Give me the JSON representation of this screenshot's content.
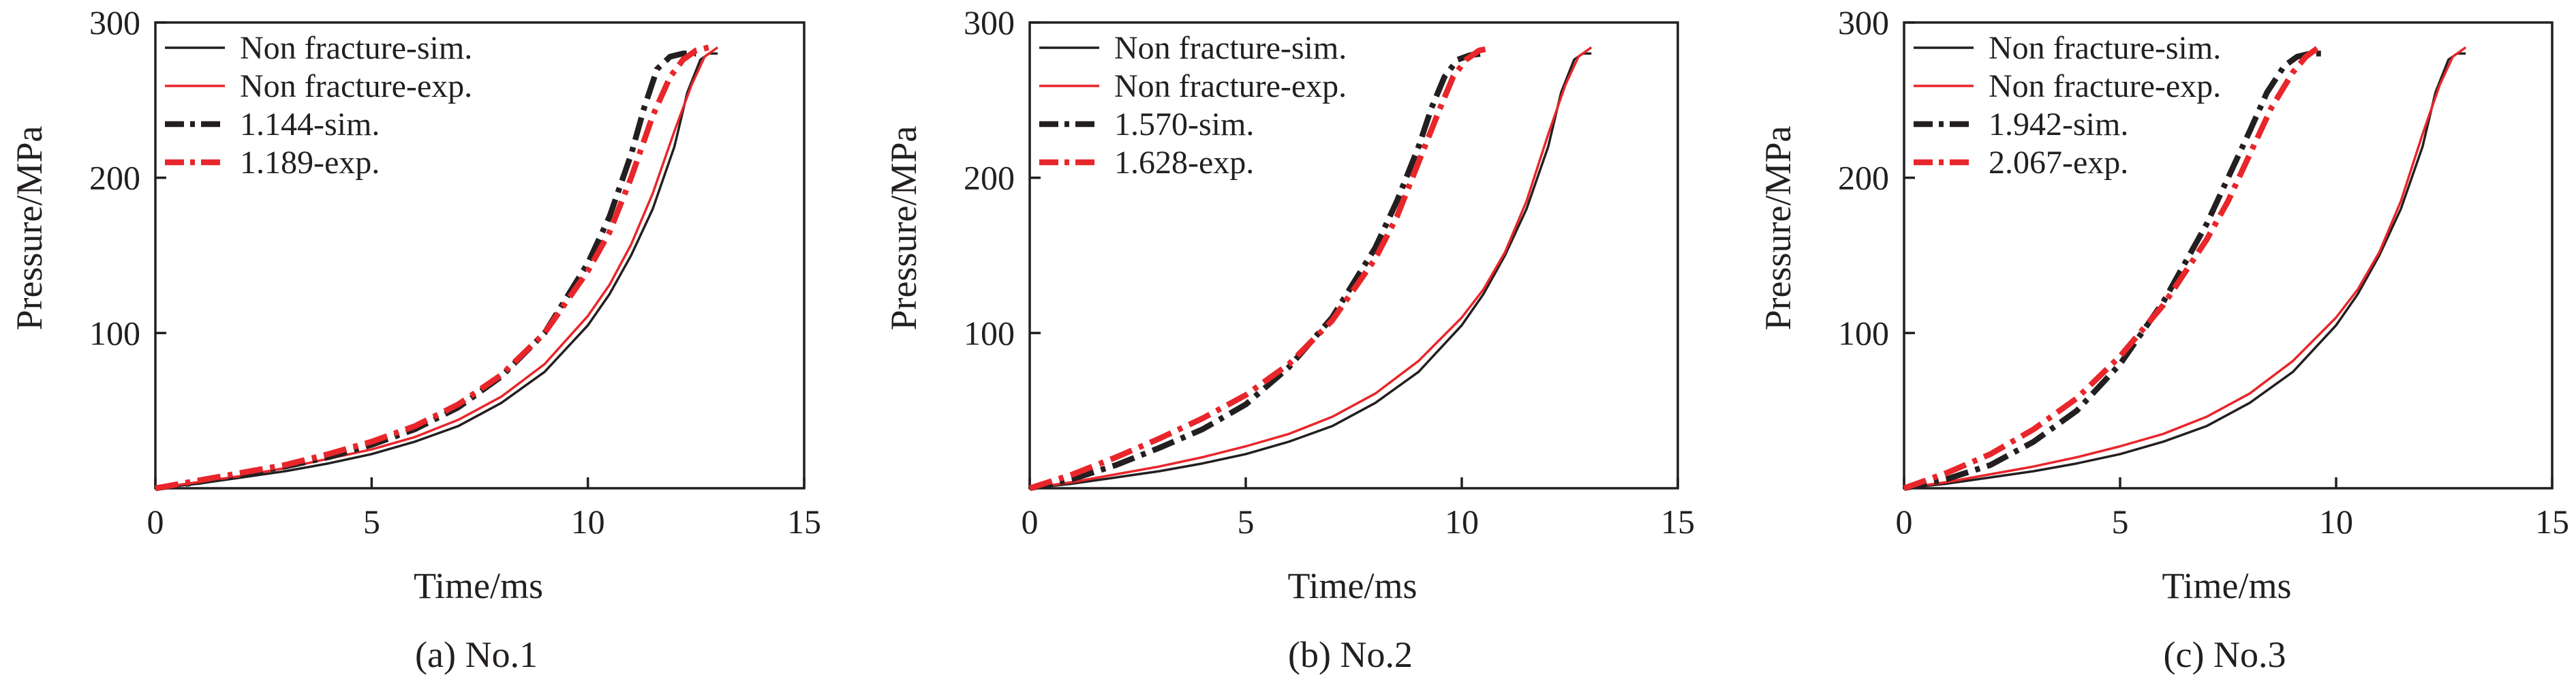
{
  "colors": {
    "black": "#231f20",
    "red": "#e8262b"
  },
  "chart_data": [
    {
      "type": "line",
      "caption": "(a) No.1",
      "xlabel": "Time/ms",
      "ylabel": "Pressure/MPa",
      "xlim": [
        0,
        15
      ],
      "ylim": [
        0,
        300
      ],
      "xticks": [
        "0",
        "5",
        "10",
        "15"
      ],
      "yticks": [
        "100",
        "200",
        "300"
      ],
      "grid": false,
      "legend_position": "top-left",
      "series": [
        {
          "name": "Non fracture-sim.",
          "style": "solid",
          "color": "#231f20",
          "x": [
            0,
            1,
            2,
            3,
            4,
            5,
            6,
            7,
            8,
            9,
            10,
            10.5,
            11,
            11.5,
            12,
            12.3,
            12.6,
            12.8,
            13.0
          ],
          "y": [
            0,
            3,
            7,
            11,
            16,
            22,
            30,
            40,
            55,
            75,
            105,
            125,
            150,
            180,
            220,
            255,
            276,
            280,
            280
          ]
        },
        {
          "name": "Non fracture-exp.",
          "style": "solid",
          "color": "#e8262b",
          "x": [
            0,
            1,
            2,
            3,
            4,
            5,
            6,
            7,
            8,
            9,
            10,
            10.5,
            11,
            11.5,
            12,
            12.4,
            12.7,
            13.0
          ],
          "y": [
            0,
            4,
            8,
            13,
            19,
            25,
            33,
            44,
            59,
            80,
            111,
            131,
            157,
            190,
            230,
            260,
            278,
            284
          ]
        },
        {
          "name": "1.144-sim.",
          "style": "dashdot",
          "color": "#231f20",
          "x": [
            0,
            1,
            2,
            3,
            4,
            5,
            6,
            7,
            8,
            9,
            10,
            10.5,
            11,
            11.3,
            11.6,
            11.9,
            12.2,
            12.5
          ],
          "y": [
            0,
            4,
            9,
            14,
            20,
            28,
            38,
            52,
            72,
            100,
            145,
            175,
            215,
            245,
            270,
            278,
            280,
            280
          ]
        },
        {
          "name": "1.189-exp.",
          "style": "dashdot",
          "color": "#e8262b",
          "x": [
            0,
            1,
            2,
            3,
            4,
            5,
            6,
            7,
            8,
            9,
            10,
            10.5,
            11,
            11.5,
            11.9,
            12.2,
            12.5,
            12.8
          ],
          "y": [
            0,
            5,
            10,
            15,
            22,
            30,
            40,
            54,
            73,
            100,
            140,
            165,
            200,
            240,
            265,
            276,
            282,
            284
          ]
        }
      ]
    },
    {
      "type": "line",
      "caption": "(b) No.2",
      "xlabel": "Time/ms",
      "ylabel": "Pressure/MPa",
      "xlim": [
        0,
        15
      ],
      "ylim": [
        0,
        300
      ],
      "xticks": [
        "0",
        "5",
        "10",
        "15"
      ],
      "yticks": [
        "100",
        "200",
        "300"
      ],
      "grid": false,
      "legend_position": "top-left",
      "series": [
        {
          "name": "Non fracture-sim.",
          "style": "solid",
          "color": "#231f20",
          "x": [
            0,
            1,
            2,
            3,
            4,
            5,
            6,
            7,
            8,
            9,
            10,
            10.5,
            11,
            11.5,
            12,
            12.3,
            12.6,
            12.8,
            13.0
          ],
          "y": [
            0,
            3,
            7,
            11,
            16,
            22,
            30,
            40,
            55,
            75,
            105,
            125,
            150,
            180,
            220,
            255,
            276,
            280,
            280
          ]
        },
        {
          "name": "Non fracture-exp.",
          "style": "solid",
          "color": "#e8262b",
          "x": [
            0,
            1,
            2,
            3,
            4,
            5,
            6,
            7,
            8,
            9,
            10,
            10.5,
            11,
            11.5,
            12,
            12.4,
            12.7,
            13.0
          ],
          "y": [
            0,
            4,
            9,
            14,
            20,
            27,
            35,
            46,
            61,
            82,
            110,
            128,
            152,
            185,
            228,
            260,
            278,
            284
          ]
        },
        {
          "name": "1.570-sim.",
          "style": "dashdot",
          "color": "#231f20",
          "x": [
            0,
            1,
            2,
            3,
            4,
            5,
            6,
            7,
            8,
            8.5,
            9,
            9.3,
            9.6,
            9.9,
            10.2,
            10.5
          ],
          "y": [
            0,
            6,
            15,
            26,
            38,
            54,
            78,
            110,
            155,
            185,
            220,
            245,
            265,
            276,
            279,
            280
          ]
        },
        {
          "name": "1.628-exp.",
          "style": "dashdot",
          "color": "#e8262b",
          "x": [
            0,
            1,
            2,
            3,
            4,
            5,
            6,
            7,
            8,
            8.5,
            9,
            9.5,
            9.8,
            10.1,
            10.4,
            10.6
          ],
          "y": [
            0,
            9,
            20,
            32,
            45,
            60,
            80,
            108,
            148,
            175,
            210,
            245,
            265,
            276,
            282,
            283
          ]
        }
      ]
    },
    {
      "type": "line",
      "caption": "(c) No.3",
      "xlabel": "Time/ms",
      "ylabel": "Pressure/MPa",
      "xlim": [
        0,
        15
      ],
      "ylim": [
        0,
        300
      ],
      "xticks": [
        "0",
        "5",
        "10",
        "15"
      ],
      "yticks": [
        "100",
        "200",
        "300"
      ],
      "grid": false,
      "legend_position": "top-left",
      "series": [
        {
          "name": "Non fracture-sim.",
          "style": "solid",
          "color": "#231f20",
          "x": [
            0,
            1,
            2,
            3,
            4,
            5,
            6,
            7,
            8,
            9,
            10,
            10.5,
            11,
            11.5,
            12,
            12.3,
            12.6,
            12.8,
            13.0
          ],
          "y": [
            0,
            3,
            7,
            11,
            16,
            22,
            30,
            40,
            55,
            75,
            105,
            125,
            150,
            180,
            220,
            255,
            276,
            280,
            280
          ]
        },
        {
          "name": "Non fracture-exp.",
          "style": "solid",
          "color": "#e8262b",
          "x": [
            0,
            1,
            2,
            3,
            4,
            5,
            6,
            7,
            8,
            9,
            10,
            10.5,
            11,
            11.5,
            12,
            12.4,
            12.7,
            13.0
          ],
          "y": [
            0,
            4,
            9,
            14,
            20,
            27,
            35,
            46,
            61,
            82,
            110,
            128,
            152,
            185,
            228,
            260,
            278,
            284
          ]
        },
        {
          "name": "1.942-sim.",
          "style": "dashdot",
          "color": "#231f20",
          "x": [
            0,
            1,
            2,
            3,
            4,
            5,
            6,
            7,
            7.5,
            8,
            8.4,
            8.8,
            9.1,
            9.4,
            9.7
          ],
          "y": [
            0,
            6,
            15,
            30,
            50,
            80,
            120,
            170,
            200,
            230,
            255,
            272,
            278,
            280,
            280
          ]
        },
        {
          "name": "2.067-exp.",
          "style": "dashdot",
          "color": "#e8262b",
          "x": [
            0,
            1,
            2,
            3,
            4,
            5,
            6,
            7,
            7.5,
            8,
            8.5,
            9,
            9.3,
            9.6
          ],
          "y": [
            0,
            10,
            22,
            38,
            58,
            85,
            118,
            160,
            185,
            215,
            245,
            268,
            278,
            284
          ]
        }
      ]
    }
  ]
}
